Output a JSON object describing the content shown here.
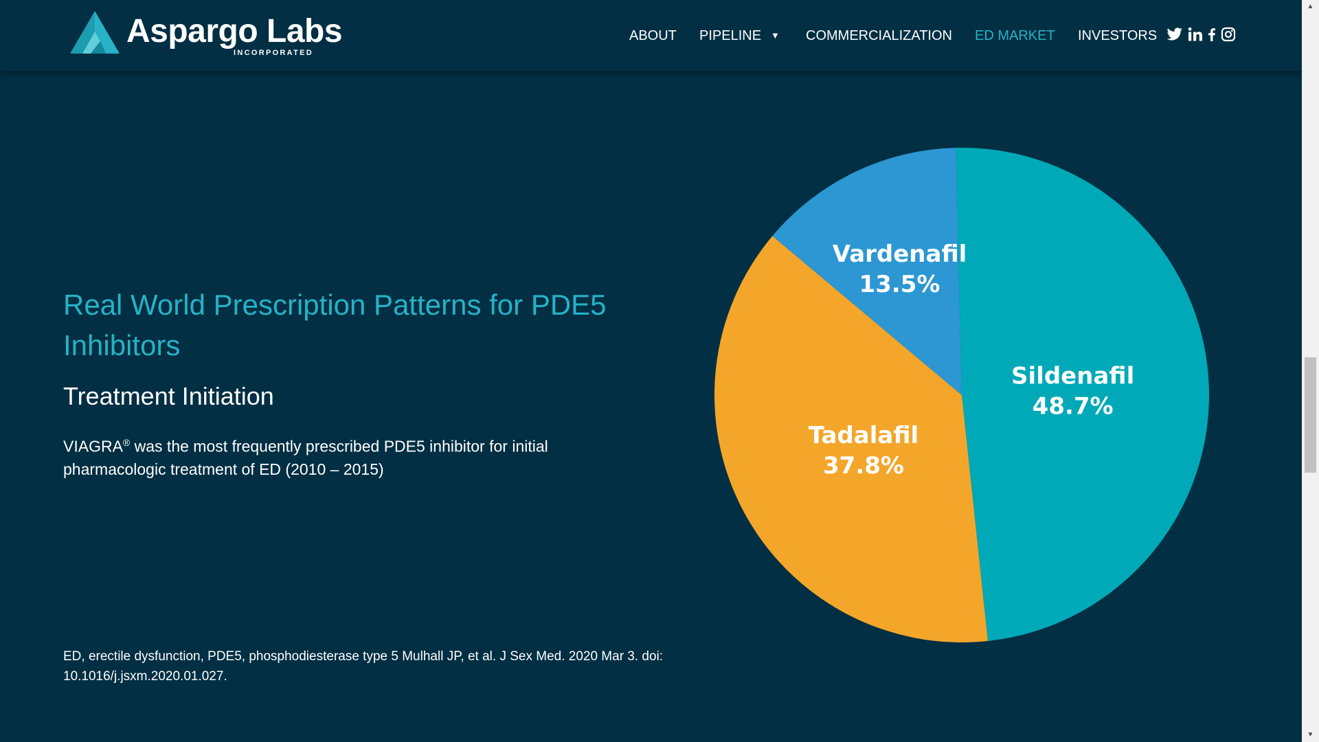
{
  "brand": {
    "name": "Aspargo Labs",
    "subname": "INCORPORATED",
    "colors": {
      "background": "#022f43",
      "accent": "#27b2c7"
    }
  },
  "nav": {
    "items": [
      {
        "label": "ABOUT",
        "active": false
      },
      {
        "label": "PIPELINE",
        "active": false,
        "has_dropdown": true,
        "caret": "▼"
      },
      {
        "label": "COMMERCIALIZATION",
        "active": false
      },
      {
        "label": "ED MARKET",
        "active": true
      },
      {
        "label": "INVESTORS",
        "active": false
      }
    ],
    "social": [
      "twitter-icon",
      "linkedin-icon",
      "facebook-icon",
      "instagram-icon"
    ]
  },
  "content": {
    "title": "Real World Prescription Patterns for PDE5 Inhibitors",
    "subtitle": "Treatment Initiation",
    "body_prefix": "VIAGRA",
    "body_sup": "®",
    "body_rest": " was the most frequently prescribed PDE5 inhibitor for initial pharmacologic treatment of ED (2010 – 2015)",
    "footnote": "ED, erectile dysfunction, PDE5, phosphodiesterase type 5 Mulhall JP, et al. J Sex Med. 2020 Mar 3. doi: 10.1016/j.jsxm.2020.01.027."
  },
  "chart_data": {
    "type": "pie",
    "categories": [
      "Sildenafil",
      "Tadalafil",
      "Vardenafil"
    ],
    "values": [
      48.7,
      37.8,
      13.5
    ],
    "value_labels": [
      "48.7%",
      "37.8%",
      "13.5%"
    ],
    "colors": [
      "#00a9b7",
      "#f4a62a",
      "#2c97d3"
    ],
    "title": "",
    "legend": "none"
  },
  "scrollbar": {
    "up_arrow": "▲",
    "down_arrow": "▼"
  }
}
